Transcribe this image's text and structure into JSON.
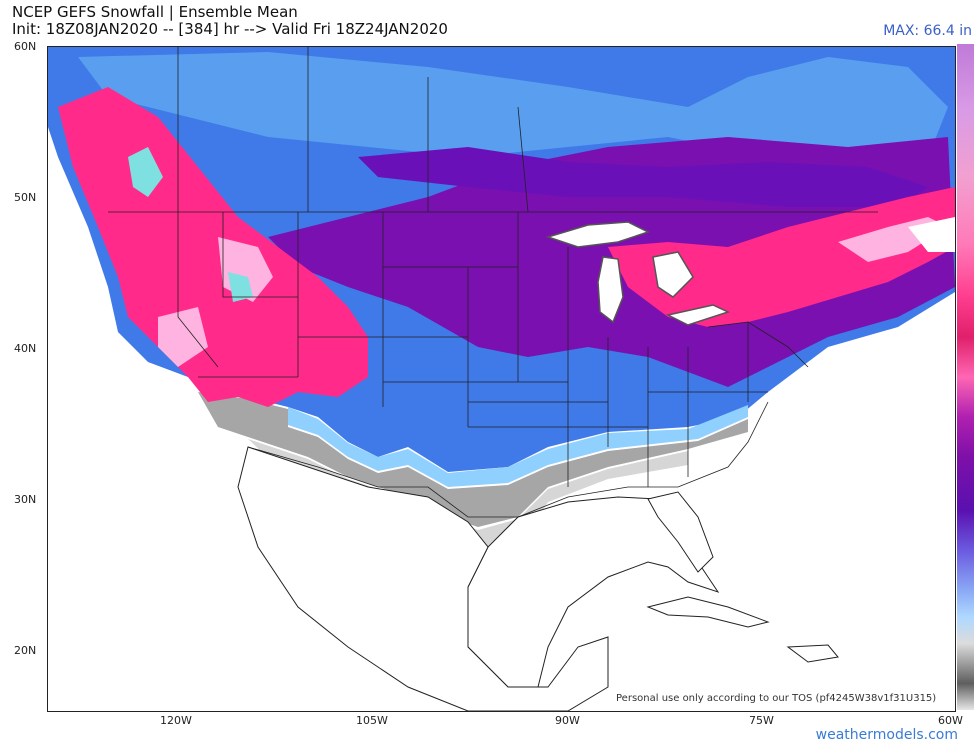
{
  "header": {
    "title_line1": "NCEP GEFS Snowfall | Ensemble Mean",
    "title_line2": "Init: 18Z08JAN2020 -- [384] hr --> Valid Fri 18Z24JAN2020",
    "max_value": "MAX: 66.4 in"
  },
  "axes": {
    "lat_labels": [
      "60N",
      "50N",
      "40N",
      "30N",
      "20N"
    ],
    "lon_labels": [
      "120W",
      "105W",
      "90W",
      "75W",
      "60W"
    ]
  },
  "footer": {
    "tos": "Personal use only according to our TOS (pf4245W38v1f31U315)",
    "brand": "weathermodels.com"
  },
  "colors": {
    "heavy_snow": "#ff2a8a",
    "mod_snow": "#7a10b0",
    "light_snow": "#3f7ae8",
    "trace_snow": "#8fd0ff",
    "dusting": "#9a9a9a",
    "land": "#ffffff"
  }
}
